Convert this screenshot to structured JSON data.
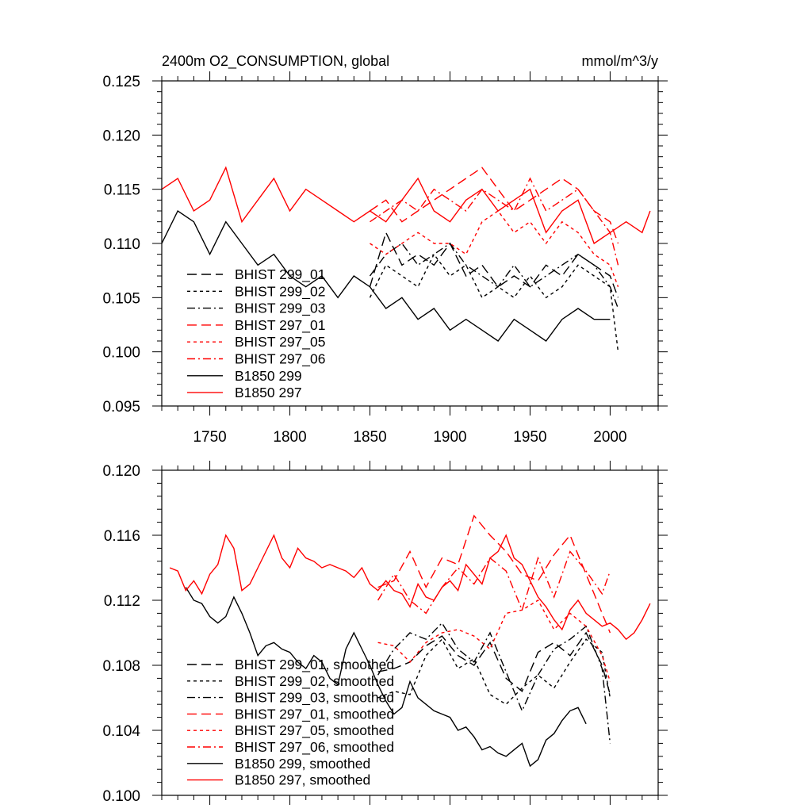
{
  "chart_data": [
    {
      "type": "line",
      "title": "2400m O2_CONSUMPTION, global",
      "units": "mmol/m^3/y",
      "xlim": [
        1720,
        2030
      ],
      "ylim": [
        0.095,
        0.125
      ],
      "x_ticks": [
        1750,
        1800,
        1850,
        1900,
        1950,
        2000
      ],
      "x_tick_labels": [
        "1750",
        "1800",
        "1850",
        "1900",
        "1950",
        "2000"
      ],
      "y_ticks": [
        0.095,
        0.1,
        0.105,
        0.11,
        0.115,
        0.12,
        0.125
      ],
      "y_tick_labels": [
        "0.095",
        "0.100",
        "0.105",
        "0.110",
        "0.115",
        "0.120",
        "0.125"
      ],
      "grid": false,
      "legend_position": "lower-left",
      "series": [
        {
          "name": "BHIST 299_01",
          "color": "#000000",
          "dash": "long-dash",
          "x": [
            1850,
            1860,
            1870,
            1880,
            1890,
            1900,
            1910,
            1920,
            1930,
            1940,
            1950,
            1960,
            1970,
            1980,
            1990,
            2000,
            2005
          ],
          "y": [
            0.106,
            0.111,
            0.108,
            0.109,
            0.108,
            0.11,
            0.107,
            0.108,
            0.106,
            0.107,
            0.106,
            0.108,
            0.107,
            0.109,
            0.108,
            0.107,
            0.105
          ]
        },
        {
          "name": "BHIST 299_02",
          "color": "#000000",
          "dash": "short-dash",
          "x": [
            1850,
            1860,
            1870,
            1880,
            1890,
            1900,
            1910,
            1920,
            1930,
            1940,
            1950,
            1960,
            1970,
            1980,
            1990,
            2000,
            2005
          ],
          "y": [
            0.105,
            0.108,
            0.107,
            0.106,
            0.109,
            0.107,
            0.108,
            0.105,
            0.106,
            0.105,
            0.107,
            0.105,
            0.106,
            0.108,
            0.107,
            0.106,
            0.1
          ]
        },
        {
          "name": "BHIST 299_03",
          "color": "#000000",
          "dash": "dash-dot",
          "x": [
            1850,
            1860,
            1870,
            1880,
            1890,
            1900,
            1910,
            1920,
            1930,
            1940,
            1950,
            1960,
            1970,
            1980,
            1990,
            2000,
            2005
          ],
          "y": [
            0.107,
            0.109,
            0.11,
            0.108,
            0.109,
            0.11,
            0.108,
            0.107,
            0.106,
            0.108,
            0.106,
            0.107,
            0.108,
            0.109,
            0.108,
            0.106,
            0.104
          ]
        },
        {
          "name": "BHIST 297_01",
          "color": "#ff0000",
          "dash": "long-dash",
          "x": [
            1850,
            1860,
            1870,
            1880,
            1890,
            1900,
            1910,
            1920,
            1930,
            1940,
            1950,
            1960,
            1970,
            1980,
            1990,
            2000,
            2005
          ],
          "y": [
            0.113,
            0.114,
            0.112,
            0.113,
            0.114,
            0.115,
            0.116,
            0.117,
            0.115,
            0.113,
            0.114,
            0.115,
            0.116,
            0.115,
            0.113,
            0.112,
            0.11
          ]
        },
        {
          "name": "BHIST 297_05",
          "color": "#ff0000",
          "dash": "short-dash",
          "x": [
            1850,
            1860,
            1870,
            1880,
            1890,
            1900,
            1910,
            1920,
            1930,
            1940,
            1950,
            1960,
            1970,
            1980,
            1990,
            2000,
            2005
          ],
          "y": [
            0.11,
            0.109,
            0.11,
            0.111,
            0.11,
            0.11,
            0.109,
            0.112,
            0.113,
            0.111,
            0.112,
            0.11,
            0.112,
            0.111,
            0.109,
            0.108,
            0.106
          ]
        },
        {
          "name": "BHIST 297_06",
          "color": "#ff0000",
          "dash": "dash-dot",
          "x": [
            1850,
            1860,
            1870,
            1880,
            1890,
            1900,
            1910,
            1920,
            1930,
            1940,
            1950,
            1960,
            1970,
            1980,
            1990,
            2000,
            2005
          ],
          "y": [
            0.112,
            0.113,
            0.114,
            0.113,
            0.115,
            0.114,
            0.113,
            0.115,
            0.114,
            0.113,
            0.116,
            0.113,
            0.114,
            0.115,
            0.113,
            0.111,
            0.108
          ]
        },
        {
          "name": "B1850 299",
          "color": "#000000",
          "dash": "solid",
          "x": [
            1720,
            1730,
            1740,
            1750,
            1760,
            1770,
            1780,
            1790,
            1800,
            1810,
            1820,
            1830,
            1840,
            1850,
            1860,
            1870,
            1880,
            1890,
            1900,
            1910,
            1920,
            1930,
            1940,
            1950,
            1960,
            1970,
            1980,
            1990,
            2000
          ],
          "y": [
            0.11,
            0.113,
            0.112,
            0.109,
            0.112,
            0.11,
            0.108,
            0.109,
            0.107,
            0.106,
            0.107,
            0.105,
            0.107,
            0.106,
            0.104,
            0.105,
            0.103,
            0.104,
            0.102,
            0.103,
            0.102,
            0.101,
            0.103,
            0.102,
            0.101,
            0.103,
            0.104,
            0.103,
            0.103
          ]
        },
        {
          "name": "B1850 297",
          "color": "#ff0000",
          "dash": "solid",
          "x": [
            1720,
            1730,
            1740,
            1750,
            1760,
            1770,
            1780,
            1790,
            1800,
            1810,
            1820,
            1830,
            1840,
            1850,
            1860,
            1870,
            1880,
            1890,
            1900,
            1910,
            1920,
            1930,
            1940,
            1950,
            1960,
            1970,
            1980,
            1990,
            2000,
            2010,
            2020,
            2025
          ],
          "y": [
            0.115,
            0.116,
            0.113,
            0.114,
            0.117,
            0.112,
            0.114,
            0.116,
            0.113,
            0.115,
            0.114,
            0.113,
            0.112,
            0.113,
            0.112,
            0.114,
            0.116,
            0.113,
            0.112,
            0.114,
            0.115,
            0.113,
            0.114,
            0.115,
            0.111,
            0.113,
            0.114,
            0.11,
            0.111,
            0.112,
            0.111,
            0.113
          ]
        }
      ]
    },
    {
      "type": "line",
      "title": "",
      "xlim": [
        1720,
        2030
      ],
      "ylim": [
        0.1,
        0.12
      ],
      "x_ticks": [
        1750,
        1800,
        1850,
        1900,
        1950,
        2000
      ],
      "y_ticks": [
        0.1,
        0.104,
        0.108,
        0.112,
        0.116,
        0.12
      ],
      "y_tick_labels": [
        "0.100",
        "0.104",
        "0.108",
        "0.112",
        "0.116",
        "0.120"
      ],
      "grid": false,
      "legend_position": "lower-left",
      "series": [
        {
          "name": "BHIST 299_01, smoothed",
          "color": "#000000",
          "dash": "long-dash",
          "x": [
            1855,
            1865,
            1875,
            1885,
            1895,
            1905,
            1915,
            1925,
            1935,
            1945,
            1955,
            1965,
            1975,
            1985,
            1995,
            2000
          ],
          "y": [
            0.1076,
            0.1078,
            0.1082,
            0.1092,
            0.1098,
            0.1086,
            0.108,
            0.1094,
            0.1072,
            0.1064,
            0.1088,
            0.1094,
            0.1086,
            0.11,
            0.108,
            0.1062
          ]
        },
        {
          "name": "BHIST 299_02, smoothed",
          "color": "#000000",
          "dash": "short-dash",
          "x": [
            1855,
            1865,
            1875,
            1885,
            1895,
            1905,
            1915,
            1925,
            1935,
            1945,
            1955,
            1965,
            1975,
            1985,
            1995,
            2000
          ],
          "y": [
            0.106,
            0.1064,
            0.1062,
            0.1086,
            0.1096,
            0.1078,
            0.1084,
            0.1062,
            0.1056,
            0.1066,
            0.1074,
            0.1066,
            0.1082,
            0.1096,
            0.1088,
            0.106
          ]
        },
        {
          "name": "BHIST 299_03, smoothed",
          "color": "#000000",
          "dash": "dash-dot",
          "x": [
            1855,
            1865,
            1875,
            1885,
            1895,
            1905,
            1915,
            1925,
            1935,
            1945,
            1955,
            1965,
            1975,
            1985,
            1995,
            2000
          ],
          "y": [
            0.1074,
            0.109,
            0.11,
            0.1096,
            0.1106,
            0.109,
            0.1082,
            0.11,
            0.1076,
            0.1052,
            0.1074,
            0.109,
            0.1096,
            0.1104,
            0.1078,
            0.1032
          ]
        },
        {
          "name": "BHIST 297_01, smoothed",
          "color": "#ff0000",
          "dash": "long-dash",
          "x": [
            1855,
            1865,
            1875,
            1885,
            1895,
            1905,
            1915,
            1925,
            1935,
            1945,
            1955,
            1965,
            1975,
            1985,
            1995,
            2000
          ],
          "y": [
            0.1128,
            0.1132,
            0.115,
            0.1128,
            0.1146,
            0.1142,
            0.1172,
            0.116,
            0.115,
            0.1136,
            0.1132,
            0.1148,
            0.116,
            0.1136,
            0.1112,
            0.11
          ]
        },
        {
          "name": "BHIST 297_05, smoothed",
          "color": "#ff0000",
          "dash": "short-dash",
          "x": [
            1855,
            1865,
            1875,
            1885,
            1895,
            1905,
            1915,
            1925,
            1935,
            1945,
            1955,
            1965,
            1975,
            1985,
            1995,
            2000
          ],
          "y": [
            0.1094,
            0.1092,
            0.1082,
            0.1094,
            0.11,
            0.1102,
            0.1098,
            0.109,
            0.1112,
            0.1114,
            0.112,
            0.1102,
            0.1112,
            0.1104,
            0.1086,
            0.107
          ]
        },
        {
          "name": "BHIST 297_06, smoothed",
          "color": "#ff0000",
          "dash": "dash-dot",
          "x": [
            1855,
            1865,
            1875,
            1885,
            1895,
            1905,
            1915,
            1925,
            1935,
            1945,
            1955,
            1965,
            1975,
            1985,
            1995,
            2000
          ],
          "y": [
            0.112,
            0.1136,
            0.112,
            0.1112,
            0.1128,
            0.114,
            0.113,
            0.1146,
            0.1138,
            0.1114,
            0.1146,
            0.1122,
            0.115,
            0.1138,
            0.1124,
            0.1138
          ]
        },
        {
          "name": "B1850 299, smoothed",
          "color": "#000000",
          "dash": "solid",
          "x": [
            1735,
            1740,
            1745,
            1750,
            1755,
            1760,
            1765,
            1770,
            1775,
            1780,
            1785,
            1790,
            1795,
            1800,
            1805,
            1810,
            1815,
            1820,
            1825,
            1830,
            1835,
            1840,
            1845,
            1850,
            1855,
            1860,
            1865,
            1870,
            1875,
            1880,
            1885,
            1890,
            1895,
            1900,
            1905,
            1910,
            1915,
            1920,
            1925,
            1930,
            1935,
            1940,
            1945,
            1950,
            1955,
            1960,
            1965,
            1970,
            1975,
            1980,
            1985
          ],
          "y": [
            0.1128,
            0.112,
            0.1118,
            0.111,
            0.1106,
            0.111,
            0.1122,
            0.1112,
            0.11,
            0.1086,
            0.1092,
            0.1094,
            0.109,
            0.1088,
            0.1082,
            0.1078,
            0.1086,
            0.1082,
            0.1072,
            0.1068,
            0.109,
            0.11,
            0.109,
            0.108,
            0.1068,
            0.1058,
            0.105,
            0.1054,
            0.107,
            0.106,
            0.1056,
            0.1052,
            0.105,
            0.1048,
            0.104,
            0.1042,
            0.1036,
            0.1028,
            0.103,
            0.1026,
            0.1024,
            0.1028,
            0.1032,
            0.1018,
            0.1022,
            0.1034,
            0.1038,
            0.1046,
            0.1052,
            0.1054,
            0.1044
          ]
        },
        {
          "name": "B1850 297, smoothed",
          "color": "#ff0000",
          "dash": "solid",
          "x": [
            1725,
            1730,
            1735,
            1740,
            1745,
            1750,
            1755,
            1760,
            1765,
            1770,
            1775,
            1780,
            1785,
            1790,
            1795,
            1800,
            1805,
            1810,
            1815,
            1820,
            1825,
            1830,
            1835,
            1840,
            1845,
            1850,
            1855,
            1860,
            1865,
            1870,
            1875,
            1880,
            1885,
            1890,
            1895,
            1900,
            1905,
            1910,
            1915,
            1920,
            1925,
            1930,
            1935,
            1940,
            1945,
            1950,
            1955,
            1960,
            1965,
            1970,
            1975,
            1980,
            1985,
            1990,
            1995,
            2000,
            2005,
            2010,
            2015,
            2020,
            2025
          ],
          "y": [
            0.114,
            0.1138,
            0.1126,
            0.1132,
            0.1124,
            0.1136,
            0.1142,
            0.116,
            0.1152,
            0.1126,
            0.113,
            0.114,
            0.115,
            0.116,
            0.1146,
            0.114,
            0.1152,
            0.1146,
            0.1144,
            0.114,
            0.1142,
            0.114,
            0.1138,
            0.1134,
            0.114,
            0.113,
            0.1126,
            0.1132,
            0.1126,
            0.1124,
            0.1116,
            0.113,
            0.1122,
            0.112,
            0.1128,
            0.1132,
            0.1126,
            0.1142,
            0.1136,
            0.113,
            0.1146,
            0.115,
            0.116,
            0.1146,
            0.1142,
            0.1132,
            0.1122,
            0.1116,
            0.1108,
            0.1102,
            0.1114,
            0.112,
            0.1112,
            0.1108,
            0.1104,
            0.1106,
            0.1102,
            0.1096,
            0.11,
            0.1108,
            0.1118
          ]
        }
      ]
    }
  ]
}
